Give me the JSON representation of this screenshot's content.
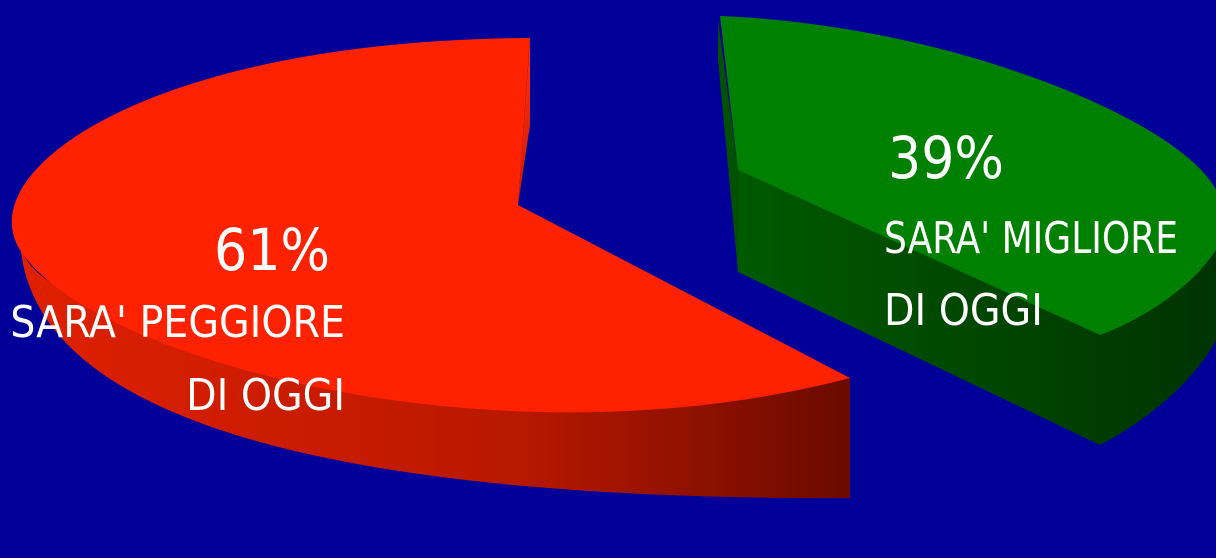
{
  "chart_data": {
    "type": "pie",
    "style": "3d-exploded",
    "slices": [
      {
        "value": 61,
        "percent_label": "61%",
        "label_line1": "SARA' PEGGIORE",
        "label_line2": "DI OGGI",
        "color": "#ff2200",
        "side_color": "#b01400"
      },
      {
        "value": 39,
        "percent_label": "39%",
        "label_line1": "SARA' MIGLIORE",
        "label_line2": "DI OGGI",
        "color": "#008000",
        "side_color": "#004d00"
      }
    ],
    "background": "#000099"
  }
}
